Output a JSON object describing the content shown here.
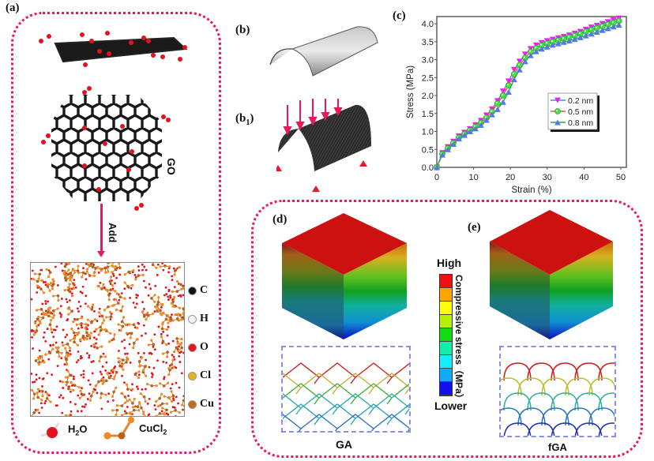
{
  "figure": {
    "panels": {
      "a": {
        "label": "(a)",
        "molecule_label": "GO",
        "arrow_label": "Add",
        "element_legend": [
          {
            "symbol": "C",
            "color": "#111111"
          },
          {
            "symbol": "H",
            "color": "#f4f4f4"
          },
          {
            "symbol": "O",
            "color": "#e3121b"
          },
          {
            "symbol": "Cl",
            "color": "#e8b020"
          },
          {
            "symbol": "Cu",
            "color": "#c26a18"
          }
        ],
        "molecule_legend": [
          {
            "name": "H2O",
            "main": "H",
            "sub": "2",
            "tail": "O"
          },
          {
            "name": "CuCl2",
            "main": "CuCl",
            "sub": "2",
            "tail": ""
          }
        ]
      },
      "b": {
        "label": "(b)"
      },
      "b1": {
        "label": "(b",
        "sub": "1",
        "close": ")"
      },
      "c": {
        "label": "(c)"
      },
      "d": {
        "label": "(d)",
        "structure_label": "GA"
      },
      "e": {
        "label": "(e)",
        "structure_label": "fGA"
      }
    },
    "colorbar": {
      "high_label": "High",
      "low_label": "Lower",
      "title": "Compressive stress（MPa）",
      "colors": [
        "#ee1111",
        "#ffa500",
        "#ffff00",
        "#b4f000",
        "#11dd11",
        "#11eeaa",
        "#11f0ff",
        "#11aaff",
        "#1111ee"
      ]
    },
    "accent_color": "#e8195a"
  },
  "chart_data": {
    "type": "line",
    "title": "",
    "xlabel": "Strain (%)",
    "ylabel": "Stress (MPa)",
    "xlim": [
      0,
      50
    ],
    "ylim": [
      0,
      4.2
    ],
    "xticks": [
      0,
      10,
      20,
      30,
      40,
      50
    ],
    "yticks": [
      "0.0",
      "0.5",
      "1.0",
      "1.5",
      "2.0",
      "2.5",
      "3.0",
      "3.5",
      "4.0"
    ],
    "legend_position": "center-right",
    "x": [
      0,
      1.5,
      3,
      4.5,
      6,
      7.5,
      9,
      10.5,
      12,
      13.5,
      15,
      16.5,
      18,
      19.5,
      21,
      22.5,
      24,
      25.5,
      27,
      28.5,
      30,
      31.5,
      33,
      34.5,
      36,
      37.5,
      39,
      40.5,
      42,
      43.5,
      45,
      46.5,
      48,
      49.5
    ],
    "series": [
      {
        "name": "0.2 nm",
        "line_color": "#2a9ad6",
        "marker_color": "#ee22ee",
        "marker": "triangle-down",
        "values": [
          0.0,
          0.4,
          0.57,
          0.72,
          0.87,
          0.97,
          1.07,
          1.18,
          1.3,
          1.45,
          1.62,
          1.85,
          2.12,
          2.4,
          2.72,
          2.95,
          3.15,
          3.3,
          3.4,
          3.47,
          3.52,
          3.56,
          3.6,
          3.64,
          3.68,
          3.73,
          3.78,
          3.84,
          3.9,
          3.95,
          4.0,
          4.05,
          4.1,
          4.15
        ]
      },
      {
        "name": "0.5 nm",
        "line_color": "#f05050",
        "marker_color": "#44e044",
        "marker": "circle",
        "values": [
          0.0,
          0.37,
          0.53,
          0.68,
          0.83,
          0.93,
          1.03,
          1.13,
          1.24,
          1.38,
          1.55,
          1.78,
          2.0,
          2.28,
          2.6,
          2.85,
          3.05,
          3.22,
          3.32,
          3.4,
          3.45,
          3.5,
          3.54,
          3.58,
          3.62,
          3.67,
          3.72,
          3.78,
          3.83,
          3.88,
          3.93,
          3.98,
          4.03,
          4.08
        ]
      },
      {
        "name": "0.8 nm",
        "line_color": "#33aa33",
        "marker_color": "#5577ee",
        "marker": "triangle-up",
        "values": [
          0.0,
          0.35,
          0.5,
          0.65,
          0.8,
          0.9,
          1.0,
          1.08,
          1.18,
          1.32,
          1.47,
          1.62,
          1.82,
          2.1,
          2.45,
          2.72,
          2.95,
          3.12,
          3.23,
          3.3,
          3.36,
          3.41,
          3.45,
          3.49,
          3.53,
          3.57,
          3.62,
          3.67,
          3.72,
          3.77,
          3.82,
          3.87,
          3.92,
          3.97
        ]
      }
    ]
  }
}
